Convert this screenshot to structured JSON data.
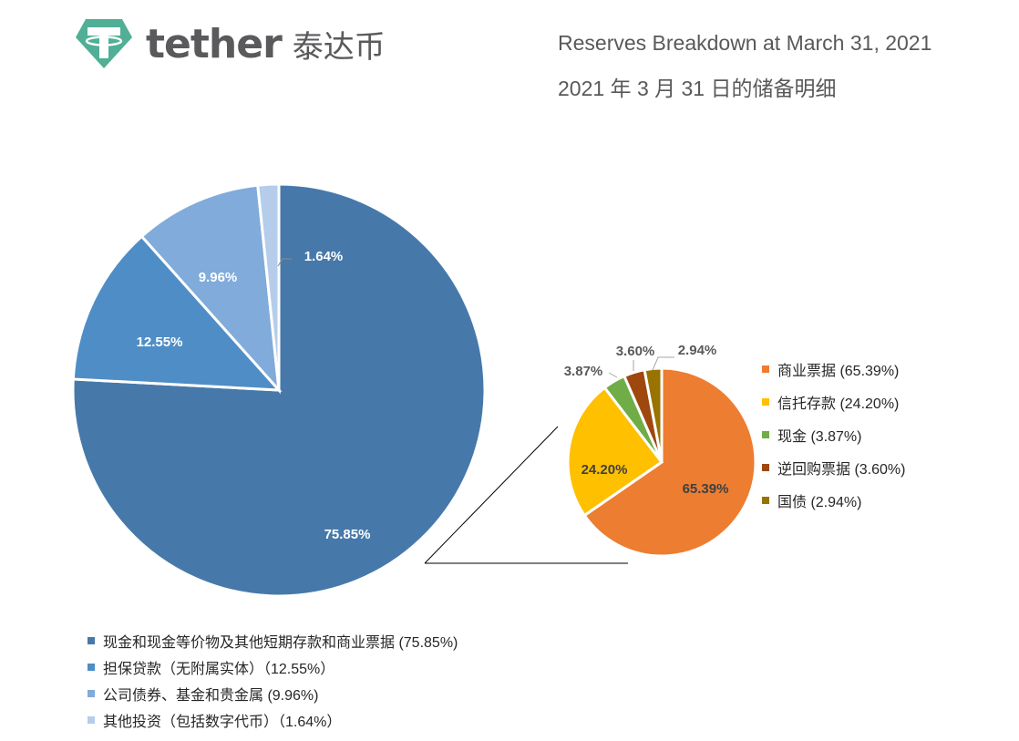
{
  "header": {
    "brand": "tether",
    "brand_cn": "泰达币",
    "title_en": "Reserves Breakdown at March 31, 2021",
    "title_cn": "2021 年 3 月 31 日的储备明细"
  },
  "colors": {
    "logo_green": "#50AF95",
    "main": [
      "#4679AA",
      "#4F8DC6",
      "#80ABDA",
      "#B5CDEA"
    ],
    "detail": [
      "#ED7D31",
      "#FFC000",
      "#70AD47",
      "#9E480E",
      "#997300"
    ]
  },
  "chart_data": [
    {
      "type": "pie",
      "title": "Reserves Breakdown at March 31, 2021",
      "categories": [
        "现金和现金等价物及其他短期存款和商业票据",
        "担保贷款（无附属实体）",
        "公司债券、基金和贵金属",
        "其他投资（包括数字代币）"
      ],
      "values": [
        75.85,
        12.55,
        9.96,
        1.64
      ],
      "labels": [
        "75.85%",
        "12.55%",
        "9.96%",
        "1.64%"
      ],
      "legend_position": "bottom"
    },
    {
      "type": "pie",
      "title": "Breakdown of 现金和现金等价物及其他短期存款和商业票据",
      "categories": [
        "商业票据",
        "信托存款",
        "现金",
        "逆回购票据",
        "国债"
      ],
      "values": [
        65.39,
        24.2,
        3.87,
        3.6,
        2.94
      ],
      "labels": [
        "65.39%",
        "24.20%",
        "3.87%",
        "3.60%",
        "2.94%"
      ],
      "legend_position": "right"
    }
  ],
  "legend_main": [
    {
      "text": "现金和现金等价物及其他短期存款和商业票据 (75.85%)"
    },
    {
      "text": "担保贷款（无附属实体）（12.55%）"
    },
    {
      "text": "公司债券、基金和贵金属 (9.96%)"
    },
    {
      "text": "其他投资（包括数字代币）（1.64%）"
    }
  ],
  "legend_detail": [
    {
      "text": "商业票据 (65.39%)"
    },
    {
      "text": "信托存款 (24.20%)"
    },
    {
      "text": "现金 (3.87%)"
    },
    {
      "text": "逆回购票据 (3.60%)"
    },
    {
      "text": "国债 (2.94%)"
    }
  ]
}
